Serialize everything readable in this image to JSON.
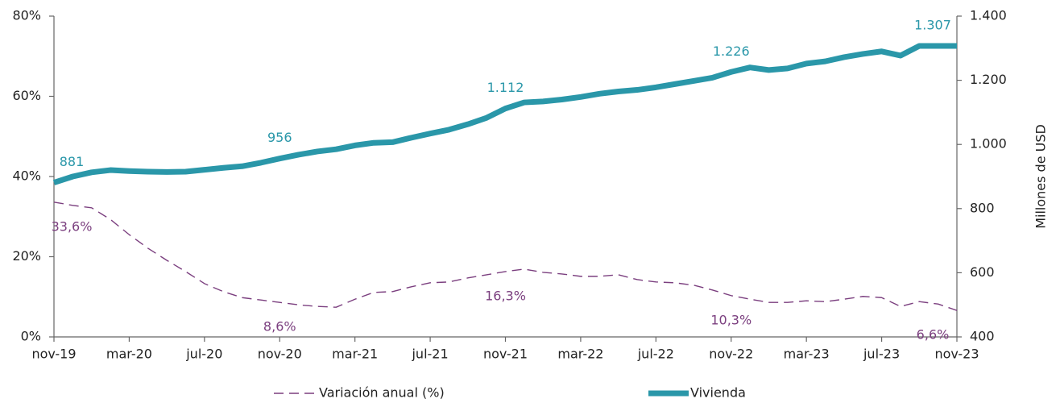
{
  "chart_data": {
    "type": "line",
    "categories": [
      "nov-19",
      null,
      null,
      null,
      "mar-20",
      null,
      null,
      null,
      "jul-20",
      null,
      null,
      null,
      "nov-20",
      null,
      null,
      null,
      "mar-21",
      null,
      null,
      null,
      "jul-21",
      null,
      null,
      null,
      "nov-21",
      null,
      null,
      null,
      "mar-22",
      null,
      null,
      null,
      "jul-22",
      null,
      null,
      null,
      "nov-22",
      null,
      null,
      null,
      "mar-23",
      null,
      null,
      null,
      "jul-23",
      null,
      null,
      null,
      "nov-23"
    ],
    "series": [
      {
        "name": "Variación anual (%)",
        "color": "#7b3f7f",
        "line_style": "dashed",
        "axis": "y",
        "values": [
          33.6,
          32.8,
          32.2,
          29.3,
          25.5,
          22.1,
          19.1,
          16.3,
          13.3,
          11.3,
          9.8,
          9.2,
          8.6,
          8.0,
          7.6,
          7.4,
          9.4,
          11.1,
          11.3,
          12.5,
          13.5,
          13.7,
          14.7,
          15.5,
          16.3,
          16.9,
          16.1,
          15.7,
          15.1,
          15.1,
          15.5,
          14.3,
          13.7,
          13.5,
          12.9,
          11.7,
          10.3,
          9.4,
          8.6,
          8.6,
          9.0,
          8.8,
          9.4,
          10.1,
          9.8,
          7.6,
          8.8,
          8.2,
          6.6
        ],
        "value_labels": [
          "33,6%",
          null,
          null,
          null,
          null,
          null,
          null,
          null,
          null,
          null,
          null,
          null,
          "8,6%",
          null,
          null,
          null,
          null,
          null,
          null,
          null,
          null,
          null,
          null,
          null,
          "16,3%",
          null,
          null,
          null,
          null,
          null,
          null,
          null,
          null,
          null,
          null,
          null,
          "10,3%",
          null,
          null,
          null,
          null,
          null,
          null,
          null,
          null,
          null,
          null,
          null,
          "6,6%"
        ]
      },
      {
        "name": "Vivienda",
        "color": "#2a97a9",
        "line_style": "solid",
        "axis": "y2",
        "values": [
          881,
          900,
          913,
          920,
          917,
          915,
          914,
          915,
          921,
          927,
          932,
          943,
          956,
          968,
          978,
          985,
          997,
          1005,
          1007,
          1021,
          1034,
          1046,
          1063,
          1083,
          1112,
          1131,
          1134,
          1140,
          1148,
          1158,
          1165,
          1170,
          1178,
          1188,
          1198,
          1208,
          1226,
          1240,
          1232,
          1237,
          1252,
          1259,
          1272,
          1282,
          1290,
          1277,
          1307,
          1307,
          1307
        ],
        "value_labels": [
          "881",
          null,
          null,
          null,
          null,
          null,
          null,
          null,
          null,
          null,
          null,
          null,
          "956",
          null,
          null,
          null,
          null,
          null,
          null,
          null,
          null,
          null,
          null,
          null,
          "1.112",
          null,
          null,
          null,
          null,
          null,
          null,
          null,
          null,
          null,
          null,
          null,
          "1.226",
          null,
          null,
          null,
          null,
          null,
          null,
          null,
          null,
          null,
          null,
          null,
          "1.307"
        ]
      }
    ],
    "ylim": [
      0,
      80
    ],
    "yticks": [
      {
        "value": 0,
        "label": "0%"
      },
      {
        "value": 20,
        "label": "20%"
      },
      {
        "value": 40,
        "label": "40%"
      },
      {
        "value": 60,
        "label": "60%"
      },
      {
        "value": 80,
        "label": "80%"
      }
    ],
    "y2lim": [
      400,
      1400
    ],
    "y2ticks": [
      400,
      600,
      800,
      {
        "value": 1000,
        "label": "1.000"
      },
      {
        "value": 1200,
        "label": "1.200"
      },
      {
        "value": 1400,
        "label": "1.400"
      }
    ],
    "y2label": "Millones de USD",
    "legend": "bottom"
  }
}
